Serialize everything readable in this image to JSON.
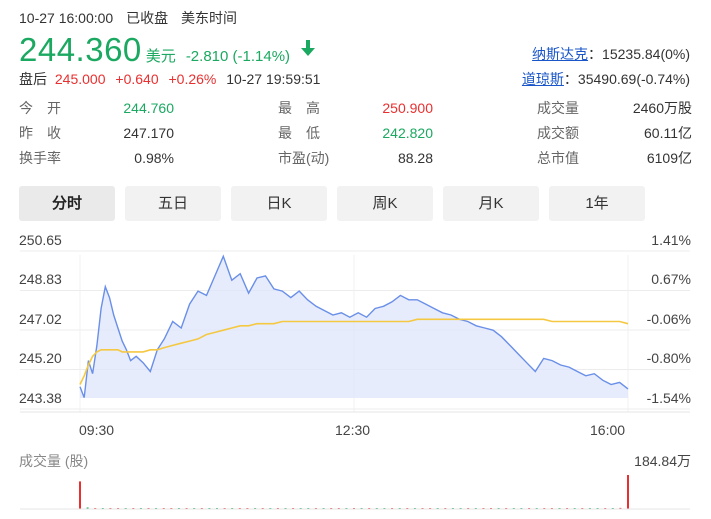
{
  "header": {
    "datetime": "10-27 16:00:00",
    "market_status": "已收盘",
    "timezone": "美东时间"
  },
  "quote": {
    "price": "244.360",
    "currency": "美元",
    "change": "-2.810",
    "change_pct": "(-1.14%)",
    "trend_icon": "arrow-down-icon",
    "down_color": "#1ba860",
    "up_color": "#e93030"
  },
  "after_hours": {
    "label": "盘后",
    "price": "245.000",
    "change": "+0.640",
    "change_pct": "+0.26%",
    "time": "10-27 19:59:51"
  },
  "indices": [
    {
      "name": "纳斯达克",
      "value": "15235.84(0%)"
    },
    {
      "name": "道琼斯",
      "value": "35490.69(-0.74%)"
    }
  ],
  "stats": {
    "open": {
      "label": "今　开",
      "value": "244.760"
    },
    "prev_close": {
      "label": "昨　收",
      "value": "247.170"
    },
    "turnover_rate": {
      "label": "换手率",
      "value": "0.98%"
    },
    "high": {
      "label": "最　高",
      "value": "250.900"
    },
    "low": {
      "label": "最　低",
      "value": "242.820"
    },
    "pe": {
      "label": "市盈(动)",
      "value": "88.28"
    },
    "volume": {
      "label": "成交量",
      "value": "2460万股"
    },
    "amount": {
      "label": "成交额",
      "value": "60.11亿"
    },
    "market_cap": {
      "label": "总市值",
      "value": "6109亿"
    }
  },
  "tabs": [
    {
      "label": "分时",
      "active": true
    },
    {
      "label": "五日",
      "active": false
    },
    {
      "label": "日K",
      "active": false
    },
    {
      "label": "周K",
      "active": false
    },
    {
      "label": "月K",
      "active": false
    },
    {
      "label": "1年",
      "active": false
    }
  ],
  "chart_data": {
    "type": "line",
    "y_ticks": [
      "250.65",
      "248.83",
      "247.02",
      "245.20",
      "243.38"
    ],
    "y_pct_ticks": [
      "1.41%",
      "0.67%",
      "-0.06%",
      "-0.80%",
      "-1.54%"
    ],
    "x_ticks": [
      "09:30",
      "12:30",
      "16:00"
    ],
    "ylim": [
      243.38,
      250.65
    ],
    "prev_close": 247.17,
    "colors": {
      "price": "#6a8fe8",
      "avg": "#f5c842",
      "fill": "#dde6fb"
    },
    "series": [
      {
        "role": "price",
        "x": [
          0,
          3,
          6,
          9,
          12,
          15,
          18,
          21,
          24,
          27,
          30,
          33,
          36,
          40,
          45,
          50,
          55,
          60,
          66,
          72,
          78,
          84,
          90,
          96,
          102,
          108,
          114,
          120,
          126,
          132,
          138,
          144,
          150,
          156,
          162,
          168,
          174,
          180,
          186,
          192,
          198,
          204,
          210,
          216,
          222,
          228,
          234,
          240,
          246,
          252,
          258,
          264,
          270,
          276,
          282,
          288,
          294,
          300,
          306,
          312,
          318,
          324,
          330,
          336,
          342,
          348,
          354,
          360,
          366,
          372,
          378,
          384,
          390
        ],
        "values": [
          243.9,
          243.4,
          245.1,
          244.5,
          245.8,
          247.5,
          248.5,
          248.0,
          247.2,
          246.6,
          246.0,
          245.6,
          245.1,
          245.3,
          245.0,
          244.6,
          245.6,
          246.1,
          246.9,
          246.6,
          247.7,
          248.3,
          248.1,
          249.0,
          249.9,
          248.8,
          249.1,
          248.2,
          248.9,
          249.0,
          248.4,
          248.3,
          248.0,
          248.3,
          247.9,
          247.6,
          247.4,
          247.2,
          247.3,
          247.1,
          247.3,
          247.1,
          247.5,
          247.6,
          247.8,
          248.1,
          247.9,
          247.9,
          247.7,
          247.5,
          247.3,
          247.2,
          247.0,
          246.9,
          246.7,
          246.6,
          246.5,
          246.2,
          245.8,
          245.4,
          245.0,
          244.6,
          245.2,
          245.1,
          244.9,
          244.8,
          244.6,
          244.4,
          244.5,
          244.2,
          244.0,
          244.1,
          243.8
        ]
      },
      {
        "role": "average",
        "x": [
          0,
          3,
          6,
          9,
          12,
          15,
          18,
          21,
          24,
          27,
          30,
          33,
          36,
          40,
          45,
          50,
          55,
          60,
          66,
          72,
          78,
          84,
          90,
          96,
          102,
          108,
          114,
          120,
          126,
          132,
          138,
          144,
          150,
          156,
          162,
          168,
          174,
          180,
          186,
          192,
          198,
          204,
          210,
          216,
          222,
          228,
          234,
          240,
          246,
          252,
          258,
          264,
          270,
          276,
          282,
          288,
          294,
          300,
          306,
          312,
          318,
          324,
          330,
          336,
          342,
          348,
          354,
          360,
          366,
          372,
          378,
          384,
          390
        ],
        "values": [
          244.0,
          244.4,
          244.9,
          245.3,
          245.5,
          245.6,
          245.6,
          245.6,
          245.6,
          245.6,
          245.5,
          245.5,
          245.5,
          245.5,
          245.5,
          245.6,
          245.6,
          245.7,
          245.8,
          245.9,
          246.0,
          246.1,
          246.3,
          246.4,
          246.5,
          246.6,
          246.7,
          246.7,
          246.8,
          246.8,
          246.8,
          246.9,
          246.9,
          246.9,
          246.9,
          246.9,
          246.9,
          246.9,
          246.9,
          246.9,
          246.9,
          246.9,
          246.9,
          246.9,
          246.9,
          246.9,
          246.9,
          247.0,
          247.0,
          247.0,
          247.0,
          247.0,
          247.0,
          247.0,
          247.0,
          247.0,
          247.0,
          247.0,
          247.0,
          247.0,
          247.0,
          247.0,
          247.0,
          246.9,
          246.9,
          246.9,
          246.9,
          246.9,
          246.9,
          246.9,
          246.9,
          246.9,
          246.8
        ]
      }
    ],
    "volume": {
      "label": "成交量 (股)",
      "max_label": "184.84万",
      "max": 184.84,
      "up_color": "#e93030",
      "down_color": "#1ba860",
      "values": [
        150,
        8,
        4,
        3,
        5,
        2,
        4,
        3,
        2,
        4,
        3,
        2,
        3,
        2,
        4,
        2,
        3,
        2,
        2,
        3,
        2,
        4,
        3,
        2,
        2,
        3,
        2,
        4,
        2,
        3,
        2,
        2,
        3,
        2,
        2,
        4,
        2,
        3,
        2,
        3,
        2,
        2,
        3,
        2,
        2,
        3,
        2,
        4,
        2,
        2,
        3,
        2,
        3,
        2,
        2,
        3,
        2,
        4,
        2,
        3,
        2,
        2,
        3,
        2,
        2,
        4,
        3,
        2,
        3,
        5,
        4,
        6,
        184.84
      ],
      "up": [
        1,
        0,
        1,
        0,
        1,
        1,
        0,
        1,
        0,
        1,
        0,
        1,
        1,
        0,
        1,
        0,
        1,
        0,
        0,
        1,
        0,
        1,
        1,
        0,
        1,
        0,
        1,
        0,
        1,
        0,
        0,
        1,
        0,
        1,
        1,
        0,
        1,
        0,
        1,
        0,
        0,
        1,
        0,
        1,
        0,
        1,
        1,
        0,
        1,
        0,
        0,
        1,
        0,
        1,
        1,
        0,
        1,
        0,
        0,
        1,
        0,
        1,
        1,
        0,
        1,
        0,
        1,
        0,
        0,
        1,
        0,
        1,
        1
      ]
    }
  }
}
